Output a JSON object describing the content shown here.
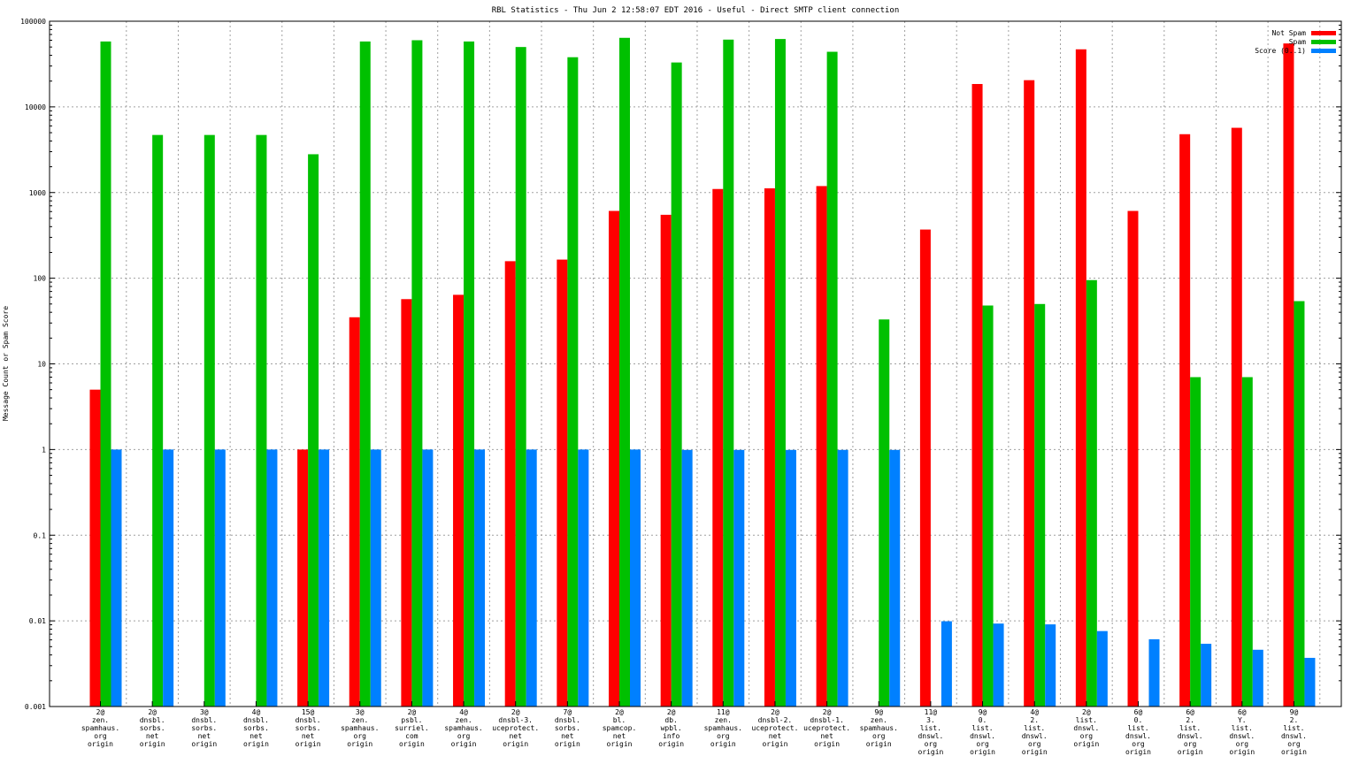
{
  "chart_data": {
    "type": "bar",
    "title": "RBL Statistics - Thu Jun  2 12:58:07 EDT 2016 - Useful - Direct SMTP client connection",
    "xlabel": "",
    "ylabel": "Message Count or Spam Score",
    "yscale": "log",
    "ylim": [
      0.001,
      100000
    ],
    "yticks": [
      "0.001",
      "0.01",
      "0.1",
      "1",
      "10",
      "100",
      "1000",
      "10000",
      "100000"
    ],
    "grid": true,
    "legend_position": "top-right",
    "categories": [
      [
        "2@",
        "zen.",
        "spamhaus.",
        "org",
        "origin"
      ],
      [
        "2@",
        "dnsbl.",
        "sorbs.",
        "net",
        "origin"
      ],
      [
        "3@",
        "dnsbl.",
        "sorbs.",
        "net",
        "origin"
      ],
      [
        "4@",
        "dnsbl.",
        "sorbs.",
        "net",
        "origin"
      ],
      [
        "15@",
        "dnsbl.",
        "sorbs.",
        "net",
        "origin"
      ],
      [
        "3@",
        "zen.",
        "spamhaus.",
        "org",
        "origin"
      ],
      [
        "2@",
        "psbl.",
        "surriel.",
        "com",
        "origin"
      ],
      [
        "4@",
        "zen.",
        "spamhaus.",
        "org",
        "origin"
      ],
      [
        "2@",
        "dnsbl-3.",
        "uceprotect.",
        "net",
        "origin"
      ],
      [
        "7@",
        "dnsbl.",
        "sorbs.",
        "net",
        "origin"
      ],
      [
        "2@",
        "bl.",
        "spamcop.",
        "net",
        "origin"
      ],
      [
        "2@",
        "db.",
        "wpbl.",
        "info",
        "origin"
      ],
      [
        "11@",
        "zen.",
        "spamhaus.",
        "org",
        "origin"
      ],
      [
        "2@",
        "dnsbl-2.",
        "uceprotect.",
        "net",
        "origin"
      ],
      [
        "2@",
        "dnsbl-1.",
        "uceprotect.",
        "net",
        "origin"
      ],
      [
        "9@",
        "zen.",
        "spamhaus.",
        "org",
        "origin"
      ],
      [
        "11@",
        "3.",
        "list.",
        "dnswl.",
        "org",
        "origin"
      ],
      [
        "9@",
        "0.",
        "list.",
        "dnswl.",
        "org",
        "origin"
      ],
      [
        "4@",
        "2.",
        "list.",
        "dnswl.",
        "org",
        "origin"
      ],
      [
        "2@",
        "list.",
        "dnswl.",
        "org",
        "origin"
      ],
      [
        "6@",
        "0.",
        "list.",
        "dnswl.",
        "org",
        "origin"
      ],
      [
        "6@",
        "2.",
        "list.",
        "dnswl.",
        "org",
        "origin"
      ],
      [
        "6@",
        "Y.",
        "list.",
        "dnswl.",
        "org",
        "origin"
      ],
      [
        "9@",
        "2.",
        "list.",
        "dnswl.",
        "org",
        "origin"
      ]
    ],
    "series": [
      {
        "name": "Not Spam",
        "color": "#ff0000",
        "values": [
          5,
          null,
          null,
          null,
          1,
          35,
          57,
          64,
          158,
          165,
          610,
          550,
          1100,
          1120,
          1190,
          null,
          370,
          18500,
          20500,
          47000,
          610,
          4800,
          5700,
          55000
        ]
      },
      {
        "name": "Spam",
        "color": "#00c000",
        "values": [
          58000,
          4700,
          4700,
          4700,
          2800,
          58000,
          60000,
          58000,
          50000,
          38000,
          64000,
          33000,
          61000,
          62000,
          44000,
          33,
          null,
          48,
          50,
          95,
          null,
          7,
          7,
          54
        ]
      },
      {
        "name": "Score (0..1)",
        "color": "#0080ff",
        "values": [
          1,
          1,
          1,
          1,
          1,
          1,
          1,
          1,
          1,
          1,
          1,
          0.99,
          0.99,
          0.99,
          0.99,
          0.99,
          0.0099,
          0.0093,
          0.0091,
          0.0076,
          0.0061,
          0.0054,
          0.0046,
          0.0037
        ]
      }
    ]
  }
}
